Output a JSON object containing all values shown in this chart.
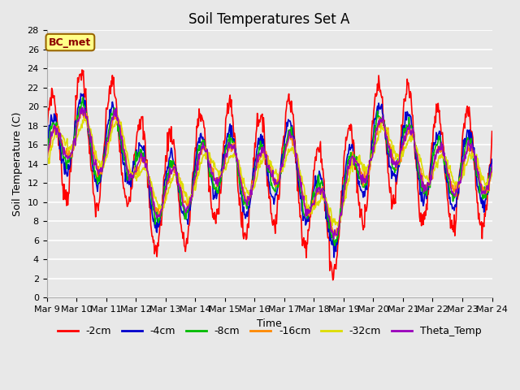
{
  "title": "Soil Temperatures Set A",
  "xlabel": "Time",
  "ylabel": "Soil Temperature (C)",
  "ylim": [
    0,
    28
  ],
  "yticks": [
    0,
    2,
    4,
    6,
    8,
    10,
    12,
    14,
    16,
    18,
    20,
    22,
    24,
    26,
    28
  ],
  "xtick_labels": [
    "Mar 9",
    "Mar 10",
    "Mar 11",
    "Mar 12",
    "Mar 13",
    "Mar 14",
    "Mar 15",
    "Mar 16",
    "Mar 17",
    "Mar 18",
    "Mar 19",
    "Mar 20",
    "Mar 21",
    "Mar 22",
    "Mar 23",
    "Mar 24"
  ],
  "legend_labels": [
    "-2cm",
    "-4cm",
    "-8cm",
    "-16cm",
    "-32cm",
    "Theta_Temp"
  ],
  "colors": [
    "#FF0000",
    "#0000CC",
    "#00BB00",
    "#FF8800",
    "#DDDD00",
    "#9900BB"
  ],
  "annotation_text": "BC_met",
  "bg_color": "#E8E8E8",
  "grid_color": "#FFFFFF",
  "title_fontsize": 12,
  "label_fontsize": 9,
  "tick_fontsize": 8,
  "legend_fontsize": 9
}
